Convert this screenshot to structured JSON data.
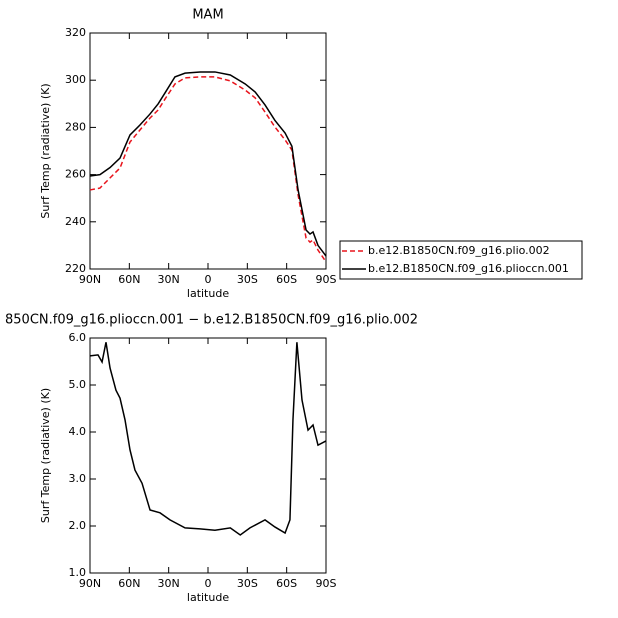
{
  "chart_data": [
    {
      "type": "line",
      "title": "MAM",
      "xlabel": "latitude",
      "ylabel": "Surf Temp (radiative) (K)",
      "x": [
        90,
        82.4,
        74.7,
        67.1,
        59.5,
        51.9,
        44.2,
        38,
        32.8,
        25.2,
        17.5,
        6,
        -5.3,
        -17,
        -28.4,
        -36,
        -43.5,
        -51,
        -58.8,
        -64,
        -68.7,
        -74.8,
        -77.8,
        -80.1,
        -83.9,
        -90
      ],
      "series": [
        {
          "name": "b.e12.B1850CN.f09_g16.plio.002",
          "color": "#e8141c",
          "line_style": "dashed",
          "values": [
            253.5,
            254.3,
            258.6,
            262.8,
            273.8,
            278.9,
            284,
            287.4,
            292,
            298.4,
            301,
            301.4,
            301.4,
            299.7,
            295.8,
            292.5,
            286.5,
            280.2,
            274.7,
            270.4,
            251.4,
            233.1,
            231.4,
            232.3,
            228,
            223
          ]
        },
        {
          "name": "b.e12.B1850CN.f09_g16.plioccn.001",
          "color": "#000000",
          "line_style": "solid",
          "values": [
            259.4,
            260,
            263,
            267,
            276.8,
            281,
            285.7,
            290,
            294.6,
            301.4,
            303,
            303.5,
            303.5,
            302.2,
            298.4,
            295,
            289.5,
            283,
            277.6,
            272,
            253.5,
            236.5,
            234.8,
            235.7,
            230,
            225.5
          ]
        }
      ],
      "xlim": [
        90,
        -90
      ],
      "xticks": [
        {
          "value": 90,
          "label": "90N"
        },
        {
          "value": 60,
          "label": "60N"
        },
        {
          "value": 30,
          "label": "30N"
        },
        0,
        {
          "value": -30,
          "label": "30S"
        },
        {
          "value": -60,
          "label": "60S"
        },
        {
          "value": -90,
          "label": "90S"
        }
      ],
      "ylim": [
        220,
        320
      ],
      "yticks": [
        220,
        240,
        260,
        280,
        300,
        320
      ],
      "legend": "right"
    },
    {
      "type": "line",
      "title": "850CN.f09_g16.plioccn.001 − b.e12.B1850CN.f09_g16.plio.002",
      "xlabel": "latitude",
      "ylabel": "Surf Temp (radiative) (K)",
      "x": [
        90,
        83.9,
        80.8,
        77.8,
        74.7,
        70.2,
        67.1,
        63.3,
        59.5,
        55.7,
        50.3,
        44.2,
        36.6,
        29,
        17.5,
        6.1,
        -5.3,
        -17,
        -24.6,
        -32,
        -43.5,
        -51,
        -58.8,
        -62.5,
        -64.8,
        -67.8,
        -71.7,
        -76.3,
        -80.1,
        -83.9,
        -90
      ],
      "series": [
        {
          "color": "#000000",
          "line_style": "solid",
          "values": [
            5.62,
            5.64,
            5.49,
            5.91,
            5.36,
            4.89,
            4.72,
            4.26,
            3.62,
            3.19,
            2.91,
            2.34,
            2.28,
            2.13,
            1.96,
            1.94,
            1.91,
            1.96,
            1.81,
            1.96,
            2.13,
            1.98,
            1.85,
            2.13,
            4.26,
            5.91,
            4.68,
            4.04,
            4.15,
            3.72,
            3.81
          ]
        }
      ],
      "xlim": [
        90,
        -90
      ],
      "xticks": [
        {
          "value": 90,
          "label": "90N"
        },
        {
          "value": 60,
          "label": "60N"
        },
        {
          "value": 30,
          "label": "30N"
        },
        0,
        {
          "value": -30,
          "label": "30S"
        },
        {
          "value": -60,
          "label": "60S"
        },
        {
          "value": -90,
          "label": "90S"
        }
      ],
      "ylim": [
        1,
        6
      ],
      "yticks": [
        {
          "value": 1,
          "label": "1.0"
        },
        {
          "value": 2,
          "label": "2.0"
        },
        {
          "value": 3,
          "label": "3.0"
        },
        {
          "value": 4,
          "label": "4.0"
        },
        {
          "value": 5,
          "label": "5.0"
        },
        {
          "value": 6,
          "label": "6.0"
        }
      ]
    }
  ]
}
